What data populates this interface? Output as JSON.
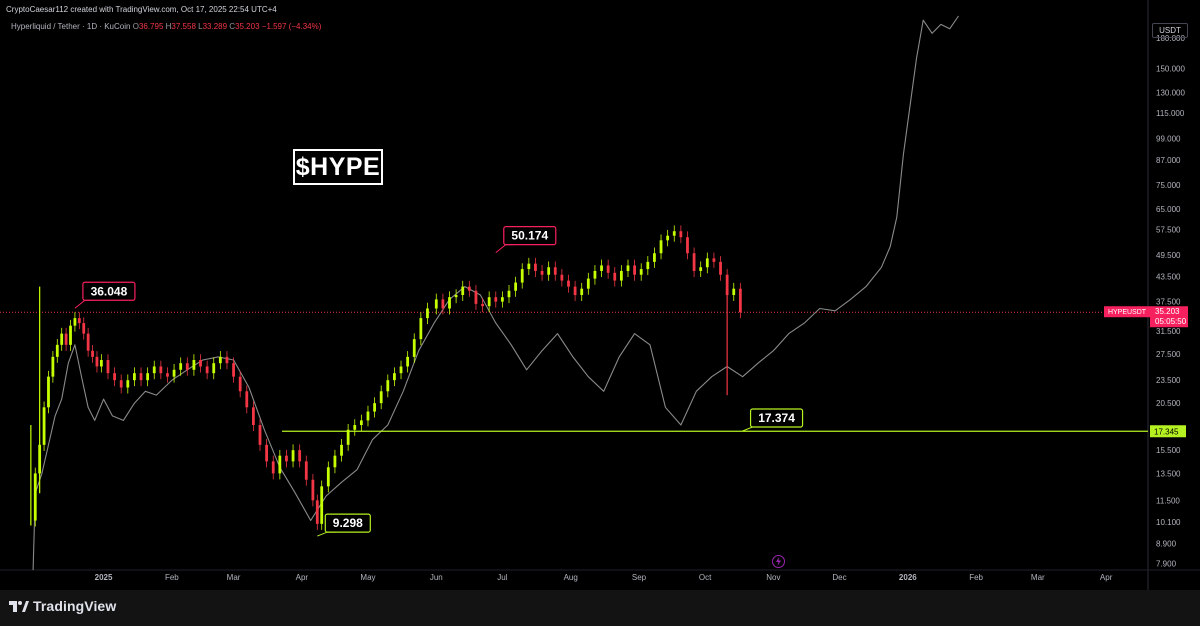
{
  "header": {
    "credit": "CryptoCaesar112 created with TradingView.com, Oct 17, 2025 22:54 UTC+4",
    "symbol": "Hyperliquid / Tether · 1D · KuCoin",
    "ohlc": {
      "o_label": "O",
      "o": "36.795",
      "h_label": "H",
      "h": "37.558",
      "l_label": "L",
      "l": "33.289",
      "c_label": "C",
      "c": "35.203",
      "change": "−1.597 (−4.34%)"
    }
  },
  "title": "$HYPE",
  "currency_button": "USDT",
  "footer": {
    "brand": "TradingView",
    "logo_icon": "tradingview-logo-icon"
  },
  "colors": {
    "background": "#000000",
    "up_candle": "#c6ff00",
    "down_candle": "#f23645",
    "overlay_line": "#8a8a8a",
    "support_line": "#b6f221",
    "price_line": "#f23645",
    "last_price_bg": "#f7205f",
    "bolt_icon": "#9c27b0"
  },
  "chart_data": {
    "type": "candlestick",
    "symbol": "HYPEUSDT",
    "scale": "log",
    "y_ticks": [
      "180.000",
      "150.000",
      "130.000",
      "115.000",
      "99.000",
      "87.000",
      "75.000",
      "65.000",
      "57.500",
      "49.500",
      "43.500",
      "37.500",
      "31.500",
      "27.500",
      "23.500",
      "20.500",
      "17.500",
      "15.500",
      "13.500",
      "11.500",
      "10.100",
      "8.900",
      "7.900"
    ],
    "y_range": [
      7.6,
      205
    ],
    "x_ticks": [
      "2025",
      "Feb",
      "Mar",
      "Apr",
      "May",
      "Jun",
      "Jul",
      "Aug",
      "Sep",
      "Oct",
      "Nov",
      "Dec",
      "2026",
      "Feb",
      "Mar",
      "Apr"
    ],
    "x_tick_dates": [
      "2025-01-01",
      "2025-02-01",
      "2025-03-01",
      "2025-04-01",
      "2025-05-01",
      "2025-06-01",
      "2025-07-01",
      "2025-08-01",
      "2025-09-01",
      "2025-10-01",
      "2025-11-01",
      "2025-12-01",
      "2026-01-01",
      "2026-02-01",
      "2026-03-01",
      "2026-04-01"
    ],
    "x_range": [
      "2024-11-15",
      "2026-04-20"
    ],
    "candles_close": [
      [
        "2024-11-29",
        10.2
      ],
      [
        "2024-12-01",
        13.5
      ],
      [
        "2024-12-03",
        16.0
      ],
      [
        "2024-12-05",
        20.0
      ],
      [
        "2024-12-07",
        24.0
      ],
      [
        "2024-12-09",
        27.0
      ],
      [
        "2024-12-11",
        29.0
      ],
      [
        "2024-12-13",
        31.0
      ],
      [
        "2024-12-15",
        29.0
      ],
      [
        "2024-12-17",
        32.5
      ],
      [
        "2024-12-19",
        34.0
      ],
      [
        "2024-12-21",
        33.0
      ],
      [
        "2024-12-23",
        31.0
      ],
      [
        "2024-12-25",
        28.0
      ],
      [
        "2024-12-27",
        27.0
      ],
      [
        "2024-12-29",
        25.5
      ],
      [
        "2024-12-31",
        26.5
      ],
      [
        "2025-01-03",
        24.5
      ],
      [
        "2025-01-06",
        23.5
      ],
      [
        "2025-01-09",
        22.5
      ],
      [
        "2025-01-12",
        23.5
      ],
      [
        "2025-01-15",
        24.5
      ],
      [
        "2025-01-18",
        23.5
      ],
      [
        "2025-01-21",
        24.5
      ],
      [
        "2025-01-24",
        25.5
      ],
      [
        "2025-01-27",
        24.5
      ],
      [
        "2025-01-30",
        24.0
      ],
      [
        "2025-02-02",
        25.0
      ],
      [
        "2025-02-05",
        26.0
      ],
      [
        "2025-02-08",
        25.0
      ],
      [
        "2025-02-11",
        26.5
      ],
      [
        "2025-02-14",
        25.5
      ],
      [
        "2025-02-17",
        24.5
      ],
      [
        "2025-02-20",
        26.0
      ],
      [
        "2025-02-23",
        27.0
      ],
      [
        "2025-02-26",
        26.0
      ],
      [
        "2025-03-01",
        24.0
      ],
      [
        "2025-03-04",
        22.0
      ],
      [
        "2025-03-07",
        20.0
      ],
      [
        "2025-03-10",
        18.0
      ],
      [
        "2025-03-13",
        16.0
      ],
      [
        "2025-03-16",
        14.5
      ],
      [
        "2025-03-19",
        13.5
      ],
      [
        "2025-03-22",
        15.0
      ],
      [
        "2025-03-25",
        14.5
      ],
      [
        "2025-03-28",
        15.5
      ],
      [
        "2025-03-31",
        14.5
      ],
      [
        "2025-04-03",
        13.0
      ],
      [
        "2025-04-06",
        11.5
      ],
      [
        "2025-04-08",
        10.0
      ],
      [
        "2025-04-10",
        12.5
      ],
      [
        "2025-04-13",
        14.0
      ],
      [
        "2025-04-16",
        15.0
      ],
      [
        "2025-04-19",
        16.0
      ],
      [
        "2025-04-22",
        17.5
      ],
      [
        "2025-04-25",
        18.0
      ],
      [
        "2025-04-28",
        18.5
      ],
      [
        "2025-05-01",
        19.5
      ],
      [
        "2025-05-04",
        20.5
      ],
      [
        "2025-05-07",
        22.0
      ],
      [
        "2025-05-10",
        23.5
      ],
      [
        "2025-05-13",
        24.5
      ],
      [
        "2025-05-16",
        25.5
      ],
      [
        "2025-05-19",
        27.0
      ],
      [
        "2025-05-22",
        30.0
      ],
      [
        "2025-05-25",
        34.0
      ],
      [
        "2025-05-28",
        36.0
      ],
      [
        "2025-06-01",
        38.0
      ],
      [
        "2025-06-04",
        36.0
      ],
      [
        "2025-06-07",
        38.5
      ],
      [
        "2025-06-10",
        39.0
      ],
      [
        "2025-06-13",
        41.0
      ],
      [
        "2025-06-16",
        40.0
      ],
      [
        "2025-06-19",
        37.0
      ],
      [
        "2025-06-22",
        36.5
      ],
      [
        "2025-06-25",
        38.5
      ],
      [
        "2025-06-28",
        37.5
      ],
      [
        "2025-07-01",
        38.5
      ],
      [
        "2025-07-04",
        40.0
      ],
      [
        "2025-07-07",
        42.0
      ],
      [
        "2025-07-10",
        45.5
      ],
      [
        "2025-07-13",
        47.0
      ],
      [
        "2025-07-16",
        45.0
      ],
      [
        "2025-07-19",
        44.0
      ],
      [
        "2025-07-22",
        46.0
      ],
      [
        "2025-07-25",
        44.0
      ],
      [
        "2025-07-28",
        42.5
      ],
      [
        "2025-07-31",
        41.0
      ],
      [
        "2025-08-03",
        39.0
      ],
      [
        "2025-08-06",
        40.5
      ],
      [
        "2025-08-09",
        43.0
      ],
      [
        "2025-08-12",
        45.0
      ],
      [
        "2025-08-15",
        46.5
      ],
      [
        "2025-08-18",
        44.5
      ],
      [
        "2025-08-21",
        42.5
      ],
      [
        "2025-08-24",
        45.0
      ],
      [
        "2025-08-27",
        46.5
      ],
      [
        "2025-08-30",
        44.0
      ],
      [
        "2025-09-02",
        45.5
      ],
      [
        "2025-09-05",
        47.5
      ],
      [
        "2025-09-08",
        50.0
      ],
      [
        "2025-09-11",
        54.0
      ],
      [
        "2025-09-14",
        55.5
      ],
      [
        "2025-09-17",
        57.0
      ],
      [
        "2025-09-20",
        55.0
      ],
      [
        "2025-09-23",
        50.0
      ],
      [
        "2025-09-26",
        45.0
      ],
      [
        "2025-09-29",
        46.0
      ],
      [
        "2025-10-02",
        48.5
      ],
      [
        "2025-10-05",
        47.5
      ],
      [
        "2025-10-08",
        44.0
      ],
      [
        "2025-10-11",
        39.0
      ],
      [
        "2025-10-14",
        40.5
      ],
      [
        "2025-10-17",
        35.2
      ]
    ],
    "overlay_series": [
      [
        "2024-11-30",
        7.6
      ],
      [
        "2024-12-01",
        12.0
      ],
      [
        "2024-12-04",
        13.5
      ],
      [
        "2024-12-07",
        16.0
      ],
      [
        "2024-12-10",
        19.0
      ],
      [
        "2024-12-13",
        21.0
      ],
      [
        "2024-12-16",
        26.0
      ],
      [
        "2024-12-19",
        29.0
      ],
      [
        "2024-12-22",
        24.0
      ],
      [
        "2024-12-25",
        20.0
      ],
      [
        "2024-12-28",
        18.5
      ],
      [
        "2025-01-01",
        21.0
      ],
      [
        "2025-01-05",
        19.0
      ],
      [
        "2025-01-10",
        18.5
      ],
      [
        "2025-01-15",
        20.5
      ],
      [
        "2025-01-20",
        22.0
      ],
      [
        "2025-01-25",
        21.5
      ],
      [
        "2025-02-01",
        23.5
      ],
      [
        "2025-02-08",
        25.0
      ],
      [
        "2025-02-15",
        26.5
      ],
      [
        "2025-02-22",
        27.0
      ],
      [
        "2025-03-01",
        26.5
      ],
      [
        "2025-03-08",
        22.5
      ],
      [
        "2025-03-15",
        17.5
      ],
      [
        "2025-03-22",
        14.0
      ],
      [
        "2025-03-29",
        12.0
      ],
      [
        "2025-04-05",
        10.2
      ],
      [
        "2025-04-12",
        11.8
      ],
      [
        "2025-04-19",
        12.8
      ],
      [
        "2025-04-26",
        13.8
      ],
      [
        "2025-05-03",
        16.5
      ],
      [
        "2025-05-10",
        18.0
      ],
      [
        "2025-05-17",
        22.0
      ],
      [
        "2025-05-24",
        28.0
      ],
      [
        "2025-05-31",
        33.0
      ],
      [
        "2025-06-07",
        38.0
      ],
      [
        "2025-06-14",
        41.0
      ],
      [
        "2025-06-21",
        39.0
      ],
      [
        "2025-06-28",
        33.0
      ],
      [
        "2025-07-05",
        29.0
      ],
      [
        "2025-07-12",
        25.0
      ],
      [
        "2025-07-19",
        28.0
      ],
      [
        "2025-07-26",
        31.0
      ],
      [
        "2025-08-02",
        27.0
      ],
      [
        "2025-08-09",
        24.0
      ],
      [
        "2025-08-16",
        22.0
      ],
      [
        "2025-08-23",
        27.0
      ],
      [
        "2025-08-30",
        31.0
      ],
      [
        "2025-09-06",
        29.0
      ],
      [
        "2025-09-13",
        20.0
      ],
      [
        "2025-09-20",
        18.0
      ],
      [
        "2025-09-27",
        22.0
      ],
      [
        "2025-10-04",
        24.0
      ],
      [
        "2025-10-11",
        25.5
      ],
      [
        "2025-10-18",
        24.0
      ],
      [
        "2025-10-25",
        26.0
      ],
      [
        "2025-11-01",
        28.0
      ],
      [
        "2025-11-08",
        31.0
      ],
      [
        "2025-11-15",
        33.0
      ],
      [
        "2025-11-22",
        36.0
      ],
      [
        "2025-11-29",
        35.5
      ],
      [
        "2025-12-06",
        38.0
      ],
      [
        "2025-12-13",
        41.0
      ],
      [
        "2025-12-20",
        46.0
      ],
      [
        "2025-12-24",
        52.0
      ],
      [
        "2025-12-27",
        62.0
      ],
      [
        "2025-12-30",
        90.0
      ],
      [
        "2026-01-02",
        120.0
      ],
      [
        "2026-01-05",
        160.0
      ],
      [
        "2026-01-08",
        200.0
      ],
      [
        "2026-01-12",
        185.0
      ],
      [
        "2026-01-16",
        195.0
      ],
      [
        "2026-01-20",
        190.0
      ],
      [
        "2026-01-24",
        205.0
      ]
    ],
    "wick_spikes": [
      [
        "2024-11-29",
        9.9,
        18.0
      ],
      [
        "2024-12-03",
        12.0,
        41.0
      ],
      [
        "2025-10-11",
        21.5,
        40.0
      ]
    ],
    "callouts": [
      {
        "label": "36.048",
        "date": "2024-12-19",
        "value": 36.048,
        "color": "#f7205f"
      },
      {
        "label": "50.174",
        "date": "2025-06-28",
        "value": 50.174,
        "color": "#f7205f"
      },
      {
        "label": "9.298",
        "date": "2025-04-08",
        "value": 9.298,
        "color": "#b6f221"
      },
      {
        "label": "17.374",
        "date": "2025-10-18",
        "value": 17.374,
        "color": "#b6f221"
      }
    ],
    "support": {
      "from_date": "2025-03-23",
      "value": 17.345,
      "label": "17.345"
    },
    "last_price": {
      "symbol": "HYPEUSDT",
      "value": "35.203",
      "countdown": "05:05:50"
    }
  }
}
